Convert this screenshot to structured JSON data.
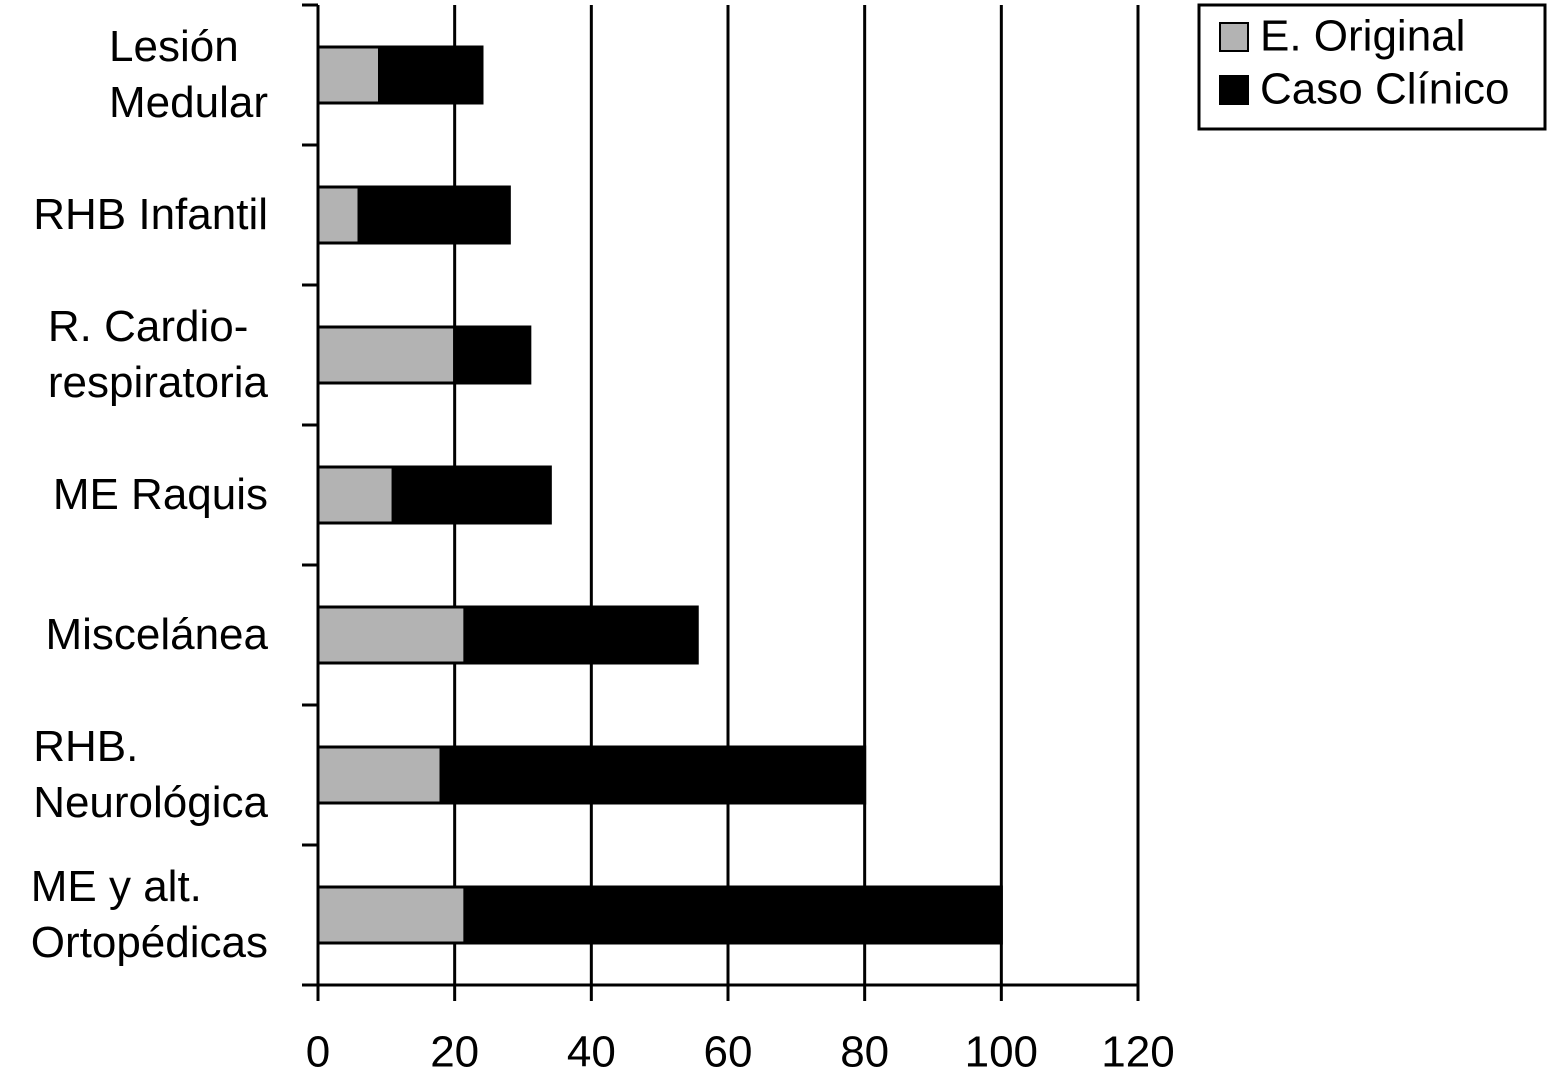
{
  "chart_data": {
    "type": "stacked-barh",
    "categories": [
      "Lesión\nMedular",
      "RHB Infantil",
      "R. Cardio-\nrespiratoria",
      "ME Raquis",
      "Miscelánea",
      "RHB.\nNeurológica",
      "ME y alt.\nOrtopédicas"
    ],
    "series": [
      {
        "name": "E. Original",
        "color": "#b3b3b3",
        "values": [
          9,
          6,
          20,
          11,
          21.5,
          18,
          21.5
        ]
      },
      {
        "name": "Caso Clínico",
        "color": "#000000",
        "values": [
          15,
          22,
          11,
          23,
          34,
          62,
          78.5
        ]
      }
    ],
    "xlim": [
      0,
      120
    ],
    "xticks": [
      0,
      20,
      40,
      60,
      80,
      100,
      120
    ],
    "grid": true,
    "legend": "top-right"
  }
}
